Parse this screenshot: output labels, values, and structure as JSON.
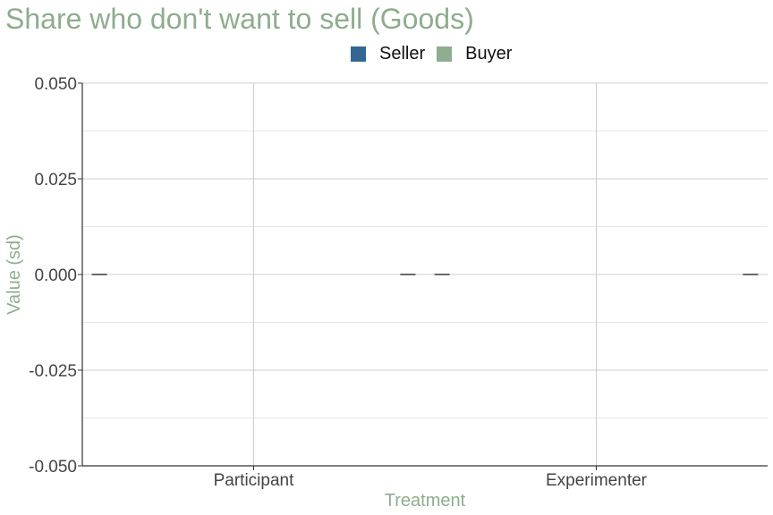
{
  "chart_data": {
    "type": "bar",
    "title": "Share who don't want to sell (Goods)",
    "xlabel": "Treatment",
    "ylabel": "Value (sd)",
    "categories": [
      "Participant",
      "Experimenter"
    ],
    "series": [
      {
        "name": "Seller",
        "color": "#336791",
        "values": [
          0.0,
          0.0
        ]
      },
      {
        "name": "Buyer",
        "color": "#8fac8f",
        "values": [
          0.0,
          0.0
        ]
      }
    ],
    "ylim": [
      -0.05,
      0.05
    ],
    "yticks": [
      -0.05,
      -0.025,
      0.0,
      0.025,
      0.05
    ],
    "ytick_labels": [
      "-0.050",
      "-0.025",
      "0.000",
      "0.025",
      "0.050"
    ],
    "grid": true,
    "legend_position": "top"
  },
  "colors": {
    "title": "#8fac8f",
    "axis_title": "#8fac8f",
    "grid_major": "#cccccc",
    "grid_minor": "#e6e6e6",
    "axis_line": "#333333"
  }
}
